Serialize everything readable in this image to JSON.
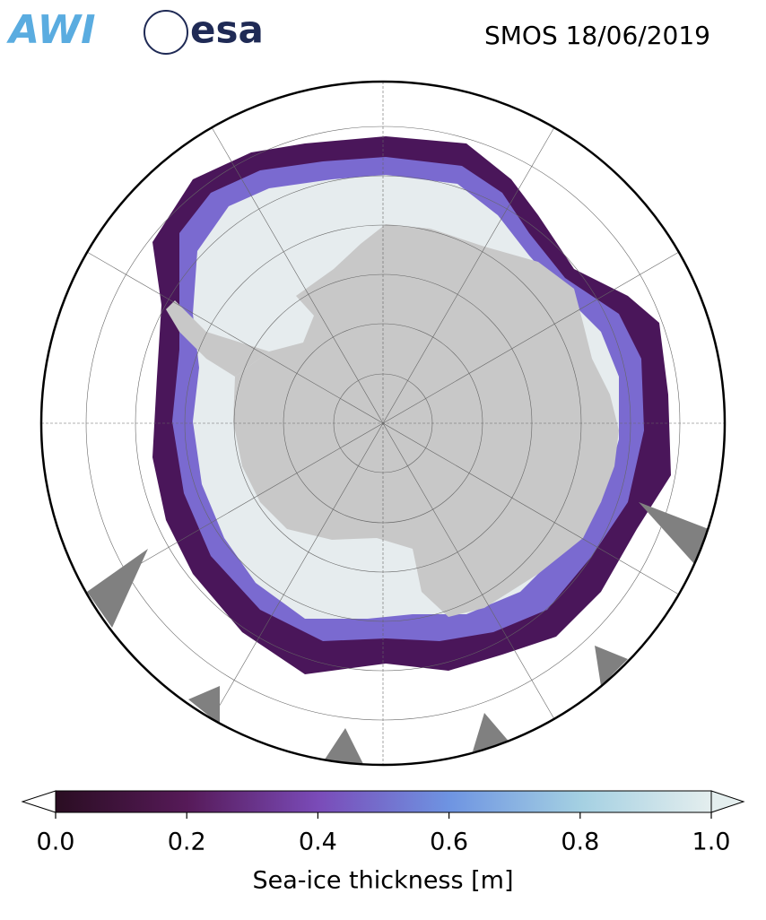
{
  "header": {
    "logos": [
      "AWI",
      "esa"
    ],
    "title": "SMOS 18/06/2019"
  },
  "colorbar": {
    "label": "Sea-ice thickness [m]",
    "lim": [
      0,
      1
    ],
    "ticks": [
      {
        "value": 0,
        "label": "0.0"
      },
      0.2,
      0.4,
      0.6,
      0.8,
      {
        "value": 1,
        "label": "1.0"
      }
    ],
    "colormap": [
      "#2a0d22",
      "#561a58",
      "#7a4bb8",
      "#6e94e2",
      "#a4d0e2",
      "#e4eeee"
    ]
  }
}
